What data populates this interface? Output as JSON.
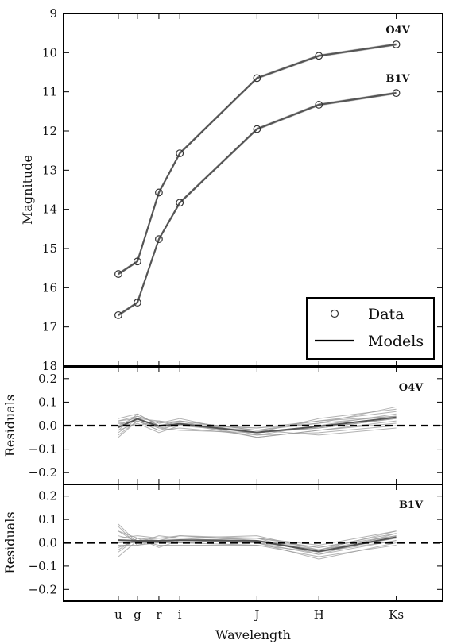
{
  "chart_data": [
    {
      "type": "line",
      "panel": "magnitudes",
      "x_categories": [
        "u",
        "g",
        "r",
        "i",
        "J",
        "H",
        "Ks"
      ],
      "x_positions": [
        0.354,
        0.477,
        0.616,
        0.751,
        1.25,
        1.65,
        2.15
      ],
      "xlabel": "Wavelength",
      "ylabel": "Magnitude",
      "ylim": [
        18,
        9
      ],
      "yticks": [
        "9",
        "10",
        "11",
        "12",
        "13",
        "14",
        "15",
        "16",
        "17",
        "18"
      ],
      "y_inverted": true,
      "series": [
        {
          "name": "O4V",
          "values": [
            15.65,
            15.33,
            13.57,
            12.57,
            10.65,
            10.08,
            9.79
          ]
        },
        {
          "name": "B1V",
          "values": [
            16.7,
            16.38,
            14.76,
            13.83,
            11.95,
            11.33,
            11.03
          ]
        }
      ],
      "legend": {
        "placement": "lower-right",
        "entries": [
          "Data",
          "Models"
        ]
      },
      "colors": {
        "line": "#555555",
        "marker": "#333333",
        "axis": "#000000"
      }
    },
    {
      "type": "line",
      "panel": "residuals",
      "label": "O4V",
      "ylabel": "Residuals",
      "ylim": [
        -0.25,
        0.25
      ],
      "yticks": [
        "0.2",
        "0.1",
        "0.0",
        "−0.1",
        "−0.2"
      ],
      "zero_line": "dashed",
      "series": [
        {
          "values": [
            -0.03,
            0.03,
            -0.01,
            0.0,
            -0.03,
            -0.01,
            0.03
          ]
        },
        {
          "values": [
            0.02,
            0.04,
            0.01,
            0.02,
            -0.02,
            0.02,
            0.06
          ]
        },
        {
          "values": [
            -0.04,
            0.02,
            -0.02,
            -0.01,
            -0.04,
            -0.03,
            0.0
          ]
        },
        {
          "values": [
            0.01,
            0.0,
            0.02,
            0.01,
            -0.01,
            0.01,
            0.04
          ]
        },
        {
          "values": [
            -0.01,
            0.03,
            0.0,
            0.02,
            -0.05,
            -0.02,
            0.02
          ]
        },
        {
          "values": [
            0.03,
            0.05,
            0.0,
            0.01,
            -0.03,
            0.03,
            0.07
          ]
        },
        {
          "values": [
            -0.02,
            0.01,
            -0.03,
            0.0,
            -0.02,
            -0.04,
            -0.01
          ]
        },
        {
          "values": [
            0.0,
            0.04,
            0.01,
            0.03,
            -0.04,
            0.0,
            0.05
          ]
        },
        {
          "values": [
            -0.05,
            0.02,
            -0.01,
            -0.02,
            -0.03,
            -0.01,
            0.03
          ]
        },
        {
          "values": [
            0.02,
            0.03,
            0.02,
            0.0,
            -0.01,
            0.02,
            0.04
          ]
        },
        {
          "values": [
            0.01,
            0.02,
            -0.02,
            0.01,
            -0.05,
            -0.02,
            0.01
          ]
        },
        {
          "values": [
            -0.02,
            0.05,
            0.0,
            0.02,
            -0.02,
            0.01,
            0.08
          ]
        }
      ]
    },
    {
      "type": "line",
      "panel": "residuals",
      "label": "B1V",
      "ylabel": "Residuals",
      "ylim": [
        -0.25,
        0.25
      ],
      "yticks": [
        "0.2",
        "0.1",
        "0.0",
        "−0.1",
        "−0.2"
      ],
      "zero_line": "dashed",
      "series": [
        {
          "values": [
            0.05,
            0.0,
            0.01,
            0.0,
            0.01,
            -0.03,
            0.03
          ]
        },
        {
          "values": [
            -0.03,
            0.02,
            0.02,
            0.03,
            0.02,
            -0.01,
            0.05
          ]
        },
        {
          "values": [
            0.07,
            -0.01,
            0.0,
            0.01,
            0.0,
            -0.05,
            0.01
          ]
        },
        {
          "values": [
            -0.06,
            0.01,
            -0.01,
            -0.01,
            -0.01,
            -0.06,
            -0.01
          ]
        },
        {
          "values": [
            0.02,
            0.03,
            0.02,
            0.02,
            0.02,
            -0.02,
            0.04
          ]
        },
        {
          "values": [
            -0.01,
            -0.01,
            0.01,
            0.0,
            0.01,
            -0.04,
            0.02
          ]
        },
        {
          "values": [
            0.08,
            0.0,
            0.03,
            0.02,
            0.03,
            -0.03,
            0.05
          ]
        },
        {
          "values": [
            -0.04,
            0.02,
            -0.02,
            0.01,
            0.0,
            -0.07,
            0.0
          ]
        },
        {
          "values": [
            0.03,
            0.01,
            0.01,
            0.03,
            0.01,
            -0.02,
            0.03
          ]
        },
        {
          "values": [
            0.0,
            0.0,
            0.0,
            0.0,
            -0.01,
            -0.04,
            0.01
          ]
        },
        {
          "values": [
            0.05,
            0.02,
            0.01,
            0.01,
            0.02,
            -0.05,
            0.04
          ]
        },
        {
          "values": [
            -0.02,
            0.01,
            0.02,
            0.02,
            0.0,
            -0.03,
            0.02
          ]
        }
      ]
    }
  ]
}
